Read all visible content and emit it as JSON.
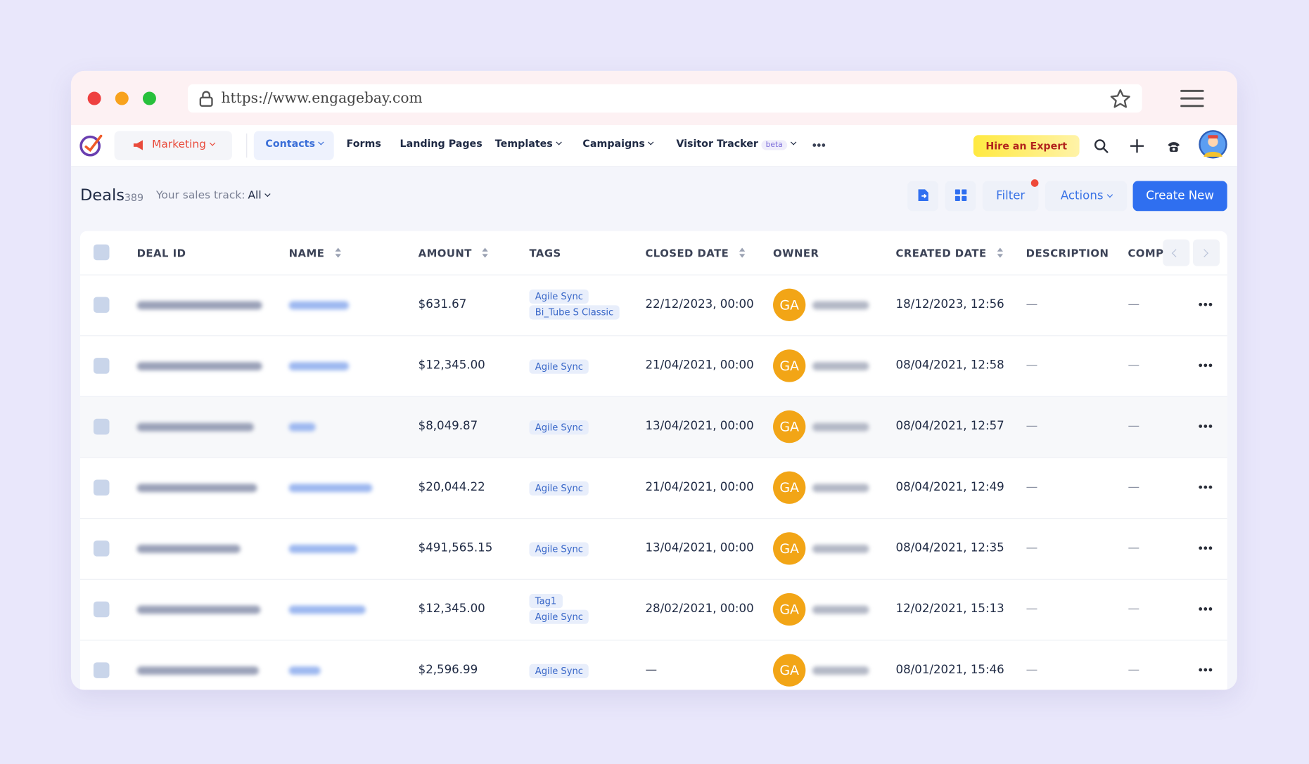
{
  "browser": {
    "url": "https://www.engagebay.com"
  },
  "nav": {
    "module": "Marketing",
    "items": [
      "Contacts",
      "Forms",
      "Landing Pages",
      "Templates",
      "Campaigns",
      "Visitor Tracker"
    ],
    "beta": "beta",
    "hire": "Hire an Expert"
  },
  "toolbar": {
    "title": "Deals",
    "count": "389",
    "track_label": "Your sales track:",
    "track_value": "All",
    "filter": "Filter",
    "actions": "Actions",
    "create": "Create New"
  },
  "table": {
    "columns": [
      "DEAL ID",
      "NAME",
      "AMOUNT",
      "TAGS",
      "CLOSED DATE",
      "OWNER",
      "CREATED DATE",
      "DESCRIPTION",
      "COMP"
    ],
    "rows": [
      {
        "amount": "$631.67",
        "tags": [
          "Agile Sync",
          "Bi_Tube S Classic"
        ],
        "closed": "22/12/2023, 00:00",
        "owner": "GA",
        "created": "18/12/2023, 12:56",
        "description": "—",
        "comp": "—"
      },
      {
        "amount": "$12,345.00",
        "tags": [
          "Agile Sync"
        ],
        "closed": "21/04/2021, 00:00",
        "owner": "GA",
        "created": "08/04/2021, 12:58",
        "description": "—",
        "comp": "—"
      },
      {
        "amount": "$8,049.87",
        "tags": [
          "Agile Sync"
        ],
        "closed": "13/04/2021, 00:00",
        "owner": "GA",
        "created": "08/04/2021, 12:57",
        "description": "—",
        "comp": "—"
      },
      {
        "amount": "$20,044.22",
        "tags": [
          "Agile Sync"
        ],
        "closed": "21/04/2021, 00:00",
        "owner": "GA",
        "created": "08/04/2021, 12:49",
        "description": "—",
        "comp": "—"
      },
      {
        "amount": "$491,565.15",
        "tags": [
          "Agile Sync"
        ],
        "closed": "13/04/2021, 00:00",
        "owner": "GA",
        "created": "08/04/2021, 12:35",
        "description": "—",
        "comp": "—"
      },
      {
        "amount": "$12,345.00",
        "tags": [
          "Tag1",
          "Agile Sync"
        ],
        "closed": "28/02/2021, 00:00",
        "owner": "GA",
        "created": "12/02/2021, 15:13",
        "description": "—",
        "comp": "—"
      },
      {
        "amount": "$2,596.99",
        "tags": [
          "Agile Sync"
        ],
        "closed": "—",
        "owner": "GA",
        "created": "08/01/2021, 15:46",
        "description": "—",
        "comp": "—"
      }
    ]
  }
}
